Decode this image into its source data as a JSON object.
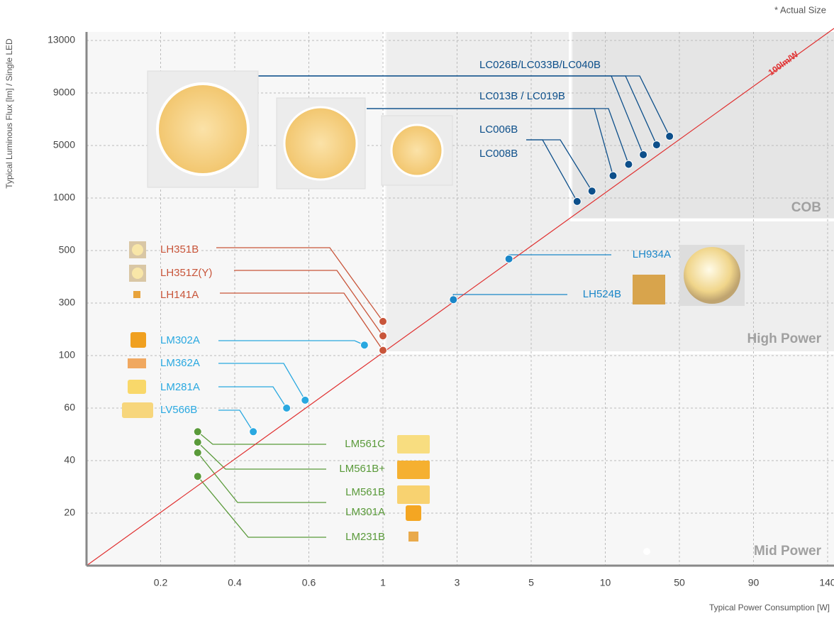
{
  "chart_data": {
    "type": "scatter",
    "note": "* Actual Size",
    "xlabel": "Typical Power Consumption [W]",
    "ylabel": "Typical Luminous Flux [lm] / Single LED",
    "line_label": "100lm/W",
    "regions": [
      "COB",
      "High Power",
      "Mid Power"
    ],
    "xlim": [
      0,
      140
    ],
    "xticks": [
      0.2,
      0.4,
      0.6,
      1,
      3,
      5,
      10,
      50,
      90,
      140
    ],
    "ylim": [
      0,
      13000
    ],
    "yticks": [
      20,
      40,
      60,
      100,
      300,
      500,
      1000,
      5000,
      9000,
      13000
    ],
    "grid": true,
    "series": [
      {
        "name": "LC026B/LC033B/LC040B",
        "color": "#0d4f8a",
        "x": [
          30.5,
          37.7,
          44.7
        ],
        "values": [
          4300,
          5050,
          5700
        ]
      },
      {
        "name": "LC013B / LC019B",
        "color": "#0d4f8a",
        "x": [
          14.2,
          22.6
        ],
        "values": [
          2700,
          3560
        ]
      },
      {
        "name": "LC006B",
        "color": "#0d4f8a",
        "x": [
          9.1
        ],
        "values": [
          1530
        ]
      },
      {
        "name": "LC008B",
        "color": "#0d4f8a",
        "x": [
          8.1
        ],
        "values": [
          967
        ]
      },
      {
        "name": "LH934A",
        "color": "#1a86c8",
        "x": [
          4.4
        ],
        "values": [
          468
        ]
      },
      {
        "name": "LH524B",
        "color": "#1a86c8",
        "x": [
          2.9
        ],
        "values": [
          313
        ]
      },
      {
        "name": "LH351B",
        "color": "#c8553a",
        "x": [
          1
        ],
        "values": [
          230
        ]
      },
      {
        "name": "LH351Z(Y)",
        "color": "#c8553a",
        "x": [
          1
        ],
        "values": [
          175
        ]
      },
      {
        "name": "LH141A",
        "color": "#c8553a",
        "x": [
          1
        ],
        "values": [
          120
        ]
      },
      {
        "name": "LM302A",
        "color": "#29a8e0",
        "x": [
          0.9
        ],
        "values": [
          140
        ]
      },
      {
        "name": "LM362A",
        "color": "#29a8e0",
        "x": [
          0.59
        ],
        "values": [
          66
        ]
      },
      {
        "name": "LM281A",
        "color": "#29a8e0",
        "x": [
          0.54
        ],
        "values": [
          60
        ]
      },
      {
        "name": "LV566B",
        "color": "#29a8e0",
        "x": [
          0.45
        ],
        "values": [
          51
        ]
      },
      {
        "name": "LM561C",
        "color": "#5a9a3a",
        "x": [
          0.3
        ],
        "values": [
          51
        ]
      },
      {
        "name": "LM561B+",
        "color": "#5a9a3a",
        "x": [
          0.3
        ],
        "values": [
          47
        ]
      },
      {
        "name": "LM561B",
        "color": "#5a9a3a",
        "x": [
          0.3
        ],
        "values": [
          43
        ]
      },
      {
        "name": "LM301A",
        "color": "#5a9a3a",
        "x": [],
        "values": []
      },
      {
        "name": "LM231B",
        "color": "#5a9a3a",
        "x": [
          0.3
        ],
        "values": [
          34
        ]
      }
    ]
  }
}
